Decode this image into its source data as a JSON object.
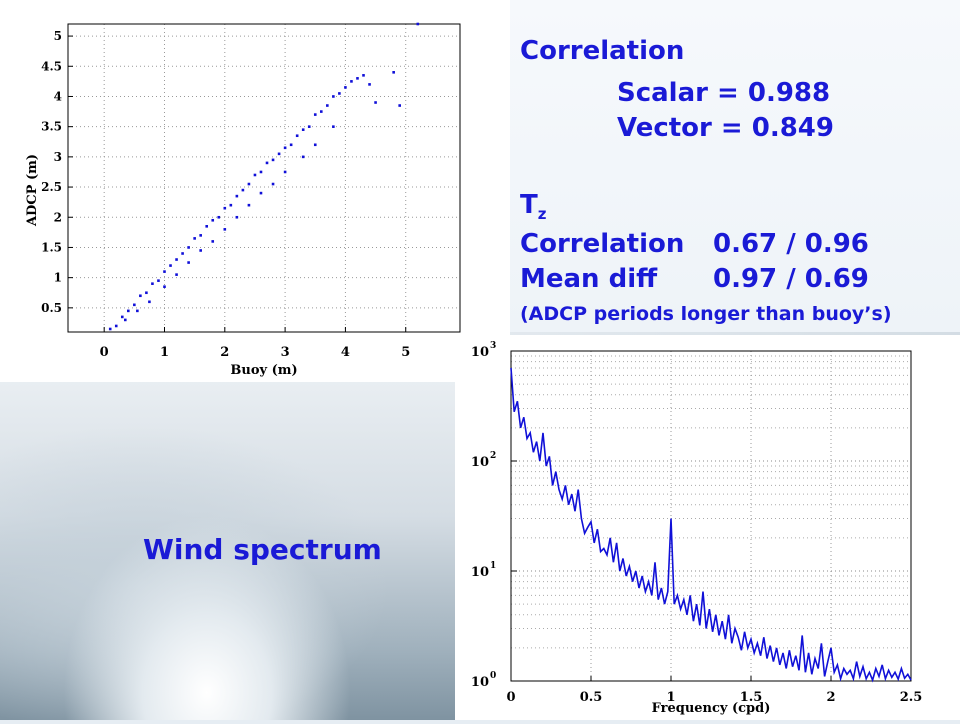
{
  "stats": {
    "correlation_title": "Correlation",
    "scalar": "Scalar = 0.988",
    "vector": "Vector = 0.849",
    "tz_main": "T",
    "tz_sub": "z",
    "tz_corr_label": "Correlation",
    "tz_corr_value": "0.67 / 0.96",
    "tz_mean_label": "Mean diff",
    "tz_mean_value": "0.97 / 0.69",
    "note": "(ADCP periods longer than buoy’s)"
  },
  "wind_label": "Wind spectrum",
  "colors": {
    "accent_text": "#1a1ad6",
    "series": "#1010d8"
  },
  "chart_data": [
    {
      "type": "scatter",
      "xlabel": "Buoy (m)",
      "ylabel": "ADCP (m)",
      "xlim": [
        -0.6,
        5.9
      ],
      "ylim": [
        0.1,
        5.2
      ],
      "x_ticks": [
        0,
        1,
        2,
        3,
        4,
        5
      ],
      "y_ticks": [
        0.5,
        1,
        1.5,
        2,
        2.5,
        3,
        3.5,
        4,
        4.5,
        5
      ],
      "x_tick_labels": [
        "0",
        "1",
        "2",
        "3",
        "4",
        "5"
      ],
      "y_tick_labels": [
        "0.5",
        "1",
        "1.5",
        "2",
        "2.5",
        "3",
        "3.5",
        "4",
        "4.5",
        "5"
      ],
      "series": [
        {
          "points": [
            [
              0.1,
              0.15
            ],
            [
              0.2,
              0.2
            ],
            [
              0.3,
              0.35
            ],
            [
              0.35,
              0.3
            ],
            [
              0.4,
              0.45
            ],
            [
              0.5,
              0.55
            ],
            [
              0.55,
              0.45
            ],
            [
              0.6,
              0.7
            ],
            [
              0.7,
              0.75
            ],
            [
              0.75,
              0.6
            ],
            [
              0.8,
              0.9
            ],
            [
              0.9,
              0.95
            ],
            [
              1.0,
              1.1
            ],
            [
              1.0,
              0.85
            ],
            [
              1.1,
              1.2
            ],
            [
              1.2,
              1.3
            ],
            [
              1.2,
              1.05
            ],
            [
              1.3,
              1.4
            ],
            [
              1.4,
              1.5
            ],
            [
              1.4,
              1.25
            ],
            [
              1.5,
              1.65
            ],
            [
              1.6,
              1.7
            ],
            [
              1.6,
              1.45
            ],
            [
              1.7,
              1.85
            ],
            [
              1.8,
              1.95
            ],
            [
              1.8,
              1.6
            ],
            [
              1.9,
              2.0
            ],
            [
              2.0,
              2.15
            ],
            [
              2.0,
              1.8
            ],
            [
              2.1,
              2.2
            ],
            [
              2.2,
              2.35
            ],
            [
              2.2,
              2.0
            ],
            [
              2.3,
              2.45
            ],
            [
              2.4,
              2.55
            ],
            [
              2.4,
              2.2
            ],
            [
              2.5,
              2.7
            ],
            [
              2.6,
              2.75
            ],
            [
              2.6,
              2.4
            ],
            [
              2.7,
              2.9
            ],
            [
              2.8,
              2.95
            ],
            [
              2.8,
              2.55
            ],
            [
              2.9,
              3.05
            ],
            [
              3.0,
              3.15
            ],
            [
              3.0,
              2.75
            ],
            [
              3.1,
              3.2
            ],
            [
              3.2,
              3.35
            ],
            [
              3.3,
              3.45
            ],
            [
              3.3,
              3.0
            ],
            [
              3.4,
              3.5
            ],
            [
              3.5,
              3.7
            ],
            [
              3.5,
              3.2
            ],
            [
              3.6,
              3.75
            ],
            [
              3.7,
              3.85
            ],
            [
              3.8,
              4.0
            ],
            [
              3.8,
              3.5
            ],
            [
              3.9,
              4.05
            ],
            [
              4.0,
              4.15
            ],
            [
              4.1,
              4.25
            ],
            [
              4.2,
              4.3
            ],
            [
              4.3,
              4.35
            ],
            [
              4.4,
              4.2
            ],
            [
              4.5,
              3.9
            ],
            [
              4.8,
              4.4
            ],
            [
              4.9,
              3.85
            ],
            [
              5.2,
              5.2
            ]
          ]
        }
      ]
    },
    {
      "type": "line",
      "xlabel": "Frequency (cpd)",
      "ylabel": "",
      "y_scale": "log",
      "xlim": [
        0,
        2.5
      ],
      "ylim": [
        1,
        1000
      ],
      "x_ticks": [
        0,
        0.5,
        1,
        1.5,
        2,
        2.5
      ],
      "x_tick_labels": [
        "0",
        "0.5",
        "1",
        "1.5",
        "2",
        "2.5"
      ],
      "y_ticks": [
        1,
        10,
        100,
        1000
      ],
      "y_tick_labels": [
        {
          "base": "10",
          "exp": "0"
        },
        {
          "base": "10",
          "exp": "1"
        },
        {
          "base": "10",
          "exp": "2"
        },
        {
          "base": "10",
          "exp": "3"
        }
      ],
      "series": [
        {
          "x": [
            0.0,
            0.02,
            0.04,
            0.06,
            0.08,
            0.1,
            0.12,
            0.14,
            0.16,
            0.18,
            0.2,
            0.22,
            0.24,
            0.26,
            0.28,
            0.3,
            0.32,
            0.34,
            0.36,
            0.38,
            0.4,
            0.42,
            0.44,
            0.46,
            0.48,
            0.5,
            0.52,
            0.54,
            0.56,
            0.58,
            0.6,
            0.62,
            0.64,
            0.66,
            0.68,
            0.7,
            0.72,
            0.74,
            0.76,
            0.78,
            0.8,
            0.82,
            0.84,
            0.86,
            0.88,
            0.9,
            0.92,
            0.94,
            0.96,
            0.98,
            1.0,
            1.02,
            1.04,
            1.06,
            1.08,
            1.1,
            1.12,
            1.14,
            1.16,
            1.18,
            1.2,
            1.22,
            1.24,
            1.26,
            1.28,
            1.3,
            1.32,
            1.34,
            1.36,
            1.38,
            1.4,
            1.42,
            1.44,
            1.46,
            1.48,
            1.5,
            1.52,
            1.54,
            1.56,
            1.58,
            1.6,
            1.62,
            1.64,
            1.66,
            1.68,
            1.7,
            1.72,
            1.74,
            1.76,
            1.78,
            1.8,
            1.82,
            1.84,
            1.86,
            1.88,
            1.9,
            1.92,
            1.94,
            1.96,
            1.98,
            2.0,
            2.02,
            2.04,
            2.06,
            2.08,
            2.1,
            2.12,
            2.14,
            2.16,
            2.18,
            2.2,
            2.22,
            2.24,
            2.26,
            2.28,
            2.3,
            2.32,
            2.34,
            2.36,
            2.38,
            2.4,
            2.42,
            2.44,
            2.46,
            2.48,
            2.5
          ],
          "y": [
            700,
            280,
            350,
            200,
            250,
            160,
            180,
            120,
            150,
            100,
            180,
            90,
            110,
            60,
            80,
            55,
            45,
            60,
            40,
            50,
            35,
            55,
            30,
            22,
            25,
            28,
            18,
            24,
            15,
            16,
            14,
            20,
            12,
            18,
            10,
            13,
            9,
            11,
            8,
            10,
            7,
            9,
            6.5,
            8,
            6,
            12,
            5.5,
            7,
            5,
            6.5,
            30,
            5,
            6,
            4.5,
            5.5,
            4,
            6,
            3.5,
            5,
            3.2,
            6.5,
            3,
            4.5,
            2.8,
            4,
            2.6,
            3.5,
            2.4,
            4,
            2.2,
            3,
            2.5,
            1.9,
            2.8,
            2,
            2.4,
            1.8,
            2.2,
            1.7,
            2.5,
            1.6,
            2.1,
            1.5,
            2,
            1.4,
            1.8,
            1.3,
            1.9,
            1.35,
            1.7,
            1.25,
            2.6,
            1.2,
            1.8,
            1.15,
            1.6,
            1.3,
            2.2,
            1.1,
            1.5,
            2.0,
            1.2,
            1.4,
            1.05,
            1.3,
            1.15,
            1.25,
            1.05,
            1.5,
            1.1,
            1.35,
            1.05,
            1.2,
            1.02,
            1.3,
            1.1,
            1.4,
            1.05,
            1.25,
            1.08,
            1.2,
            1.04,
            1.3,
            1.06,
            1.15,
            1.02
          ]
        }
      ]
    }
  ]
}
